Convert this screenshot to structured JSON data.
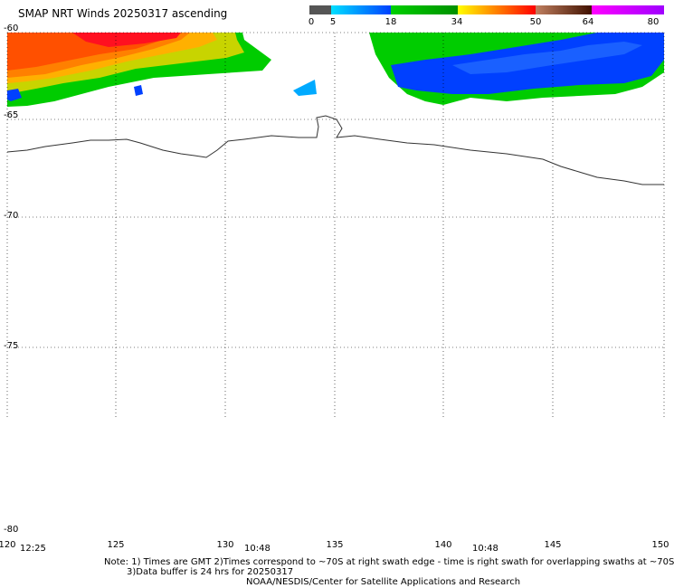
{
  "title": "SMAP NRT Winds 20250317 ascending",
  "colorbar": {
    "ticks": [
      "0",
      "5",
      "18",
      "34",
      "50",
      "64",
      "80"
    ],
    "colors": {
      "gray": "#606060",
      "cyan": "#00d0ff",
      "blue": "#0040ff",
      "green": "#00cc00",
      "darkgreen": "#00a000",
      "yellow": "#ffd000",
      "orange": "#ff8000",
      "red": "#ff1020",
      "brown": "#8b4513",
      "darkbrown": "#4a2000",
      "magenta": "#ff00ff",
      "purple": "#a000ff"
    }
  },
  "map": {
    "lat_labels": [
      "-60",
      "-65",
      "-70",
      "-75",
      "-80"
    ],
    "lon_labels": [
      "120",
      "125",
      "130",
      "135",
      "140",
      "145",
      "150"
    ],
    "time_labels": [
      "12:25",
      "10:48",
      "10:48"
    ]
  },
  "notes": {
    "line1": "Note: 1) Times are GMT 2)Times correspond to ~70S at right swath edge - time is right swath for overlapping swaths at ~70S",
    "line2": "3)Data buffer is 24 hrs for 20250317",
    "line3": "NOAA/NESDIS/Center for Satellite Applications and Research"
  }
}
